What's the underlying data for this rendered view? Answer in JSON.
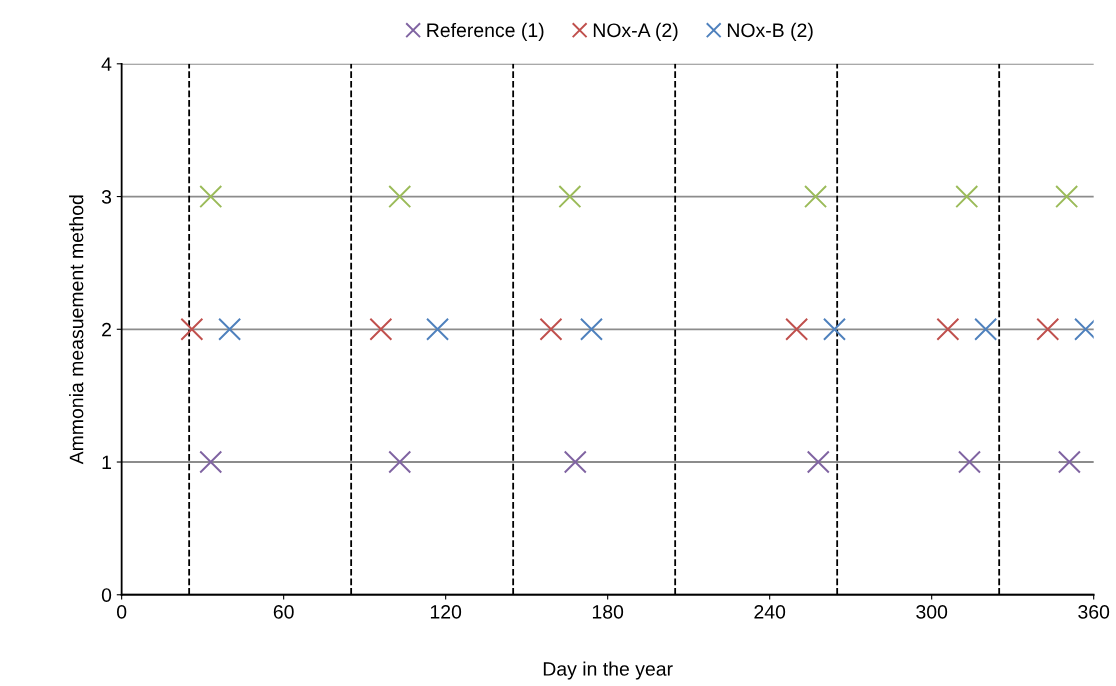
{
  "chart_data": {
    "type": "scatter",
    "xlabel": "Day in the year",
    "ylabel": "Ammonia measuement method",
    "xlim": [
      0,
      360
    ],
    "xticks": [
      0,
      60,
      120,
      180,
      240,
      300,
      360
    ],
    "ylim": [
      0,
      4
    ],
    "yticks": [
      0,
      1,
      2,
      3,
      4
    ],
    "grid": "y",
    "legend": "top",
    "marker": "cross",
    "series": [
      {
        "name": "Reference (1)",
        "color": "#8064a2",
        "x": [
          33,
          103,
          168,
          258,
          314,
          351
        ],
        "values": [
          1,
          1,
          1,
          1,
          1,
          1
        ]
      },
      {
        "name": "NOx-A (2)",
        "color": "#c0504d",
        "x": [
          26,
          96,
          159,
          250,
          306,
          343
        ],
        "values": [
          2,
          2,
          2,
          2,
          2,
          2
        ]
      },
      {
        "name": "NOx-B (2)",
        "color": "#4f81bd",
        "x": [
          40,
          117,
          174,
          264,
          320,
          357
        ],
        "values": [
          2,
          2,
          2,
          2,
          2,
          2
        ]
      },
      {
        "color": "#9bbb59",
        "x": [
          33,
          103,
          166,
          257,
          313,
          350
        ],
        "values": [
          3,
          3,
          3,
          3,
          3,
          3
        ]
      }
    ],
    "ref_lines": [
      {
        "axis": "x",
        "value": 25,
        "color": "#000000",
        "line_style": "dashed"
      },
      {
        "axis": "x",
        "value": 85,
        "color": "#000000",
        "line_style": "dashed"
      },
      {
        "axis": "x",
        "value": 145,
        "color": "#000000",
        "line_style": "dashed"
      },
      {
        "axis": "x",
        "value": 205,
        "color": "#000000",
        "line_style": "dashed"
      },
      {
        "axis": "x",
        "value": 265,
        "color": "#000000",
        "line_style": "dashed"
      },
      {
        "axis": "x",
        "value": 325,
        "color": "#000000",
        "line_style": "dashed"
      }
    ]
  }
}
